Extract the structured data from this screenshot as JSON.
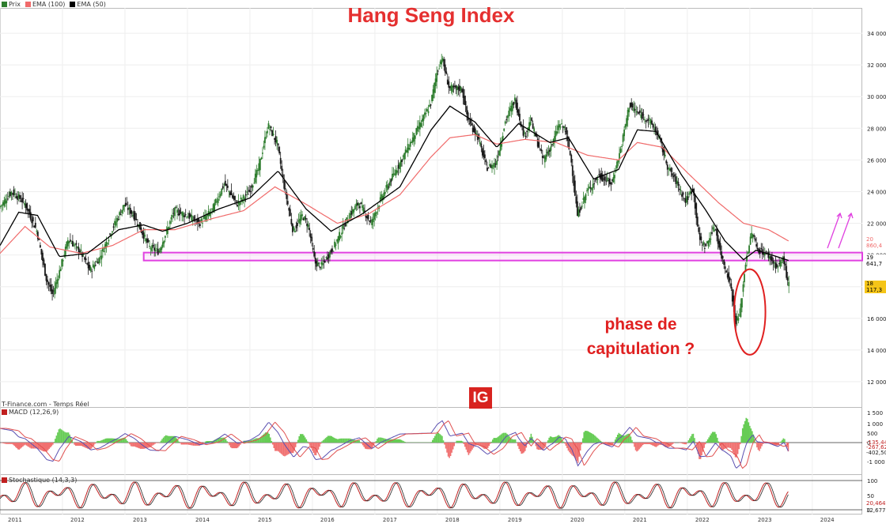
{
  "header": {
    "legend": [
      {
        "label": "Prix",
        "color": "#2e7d2e"
      },
      {
        "label": "EMA (100)",
        "color": "#f06a6a"
      },
      {
        "label": "EMA (50)",
        "color": "#000000"
      }
    ],
    "title": "Hang Seng Index"
  },
  "annotation": {
    "line1": "phase de",
    "line2": "capitulation ?"
  },
  "source_label": "T-Finance.com - Temps Réel",
  "logo_text": "IG",
  "macd": {
    "label": "MACD (12,26,9)",
    "ticks": [
      "1 500",
      "1 000",
      "500",
      "0",
      "-1 000"
    ],
    "tags": [
      "-135,44",
      "-267,62",
      "-402,50"
    ]
  },
  "stoch": {
    "label": "Stochastique (14,3,3)",
    "ticks": [
      "100",
      "50",
      "0"
    ],
    "tags": [
      "20,464",
      "12,677"
    ]
  },
  "price_tags": {
    "ema100": "20 860,4",
    "ema50": "19 641,7",
    "last": "18 117,3"
  },
  "colors": {
    "up": "#2e7d2e",
    "down": "#1a1a1a",
    "ema100": "#f06a6a",
    "ema50": "#000000",
    "zone": "#e040e0",
    "circle": "#e02020",
    "arrows": "#e040e0",
    "macd_pos": "#66cc55",
    "macd_neg": "#f07070",
    "stoch_k": "#c02020",
    "stoch_d": "#222222"
  },
  "chart_data": {
    "type": "candlestick",
    "title": "Hang Seng Index",
    "y_ticks": [
      12000,
      14000,
      16000,
      18000,
      20000,
      22000,
      24000,
      26000,
      28000,
      30000,
      32000,
      34000
    ],
    "y_tick_labels": [
      "12 000",
      "14 000",
      "16 000",
      "18 000",
      "20 000",
      "22 000",
      "24 000",
      "26 000",
      "28 000",
      "30 000",
      "32 000",
      "34 000"
    ],
    "ylim": [
      10400,
      35600
    ],
    "x_labels": [
      "2011",
      "2012",
      "2013",
      "2014",
      "2015",
      "2016",
      "2017",
      "2018",
      "2019",
      "2020",
      "2021",
      "2022",
      "2023",
      "2024"
    ],
    "xlim": [
      2011.0,
      2024.8
    ],
    "price_anchors": [
      [
        2011.0,
        23000
      ],
      [
        2011.2,
        24000
      ],
      [
        2011.4,
        23300
      ],
      [
        2011.6,
        21500
      ],
      [
        2011.75,
        18500
      ],
      [
        2011.85,
        17500
      ],
      [
        2011.95,
        18800
      ],
      [
        2012.1,
        21000
      ],
      [
        2012.3,
        20200
      ],
      [
        2012.45,
        19000
      ],
      [
        2012.6,
        19800
      ],
      [
        2012.8,
        21600
      ],
      [
        2013.0,
        23200
      ],
      [
        2013.15,
        22500
      ],
      [
        2013.4,
        20500
      ],
      [
        2013.55,
        20200
      ],
      [
        2013.8,
        22800
      ],
      [
        2014.0,
        22500
      ],
      [
        2014.2,
        22000
      ],
      [
        2014.4,
        22800
      ],
      [
        2014.6,
        24500
      ],
      [
        2014.8,
        23200
      ],
      [
        2015.0,
        24000
      ],
      [
        2015.15,
        25500
      ],
      [
        2015.3,
        28200
      ],
      [
        2015.45,
        27000
      ],
      [
        2015.55,
        24500
      ],
      [
        2015.7,
        21500
      ],
      [
        2015.85,
        22500
      ],
      [
        2015.95,
        21800
      ],
      [
        2016.05,
        19500
      ],
      [
        2016.15,
        19300
      ],
      [
        2016.35,
        20500
      ],
      [
        2016.6,
        22500
      ],
      [
        2016.75,
        23300
      ],
      [
        2016.95,
        22000
      ],
      [
        2017.1,
        23500
      ],
      [
        2017.3,
        25000
      ],
      [
        2017.5,
        26500
      ],
      [
        2017.7,
        28000
      ],
      [
        2017.9,
        29500
      ],
      [
        2018.0,
        31500
      ],
      [
        2018.08,
        32500
      ],
      [
        2018.2,
        30500
      ],
      [
        2018.4,
        30500
      ],
      [
        2018.5,
        28500
      ],
      [
        2018.65,
        27500
      ],
      [
        2018.8,
        25500
      ],
      [
        2018.95,
        25800
      ],
      [
        2019.1,
        28500
      ],
      [
        2019.25,
        29800
      ],
      [
        2019.4,
        27500
      ],
      [
        2019.5,
        28500
      ],
      [
        2019.7,
        26000
      ],
      [
        2019.85,
        27000
      ],
      [
        2019.95,
        28200
      ],
      [
        2020.05,
        28000
      ],
      [
        2020.15,
        26000
      ],
      [
        2020.25,
        22500
      ],
      [
        2020.4,
        24000
      ],
      [
        2020.6,
        25000
      ],
      [
        2020.8,
        24500
      ],
      [
        2020.95,
        26800
      ],
      [
        2021.08,
        29500
      ],
      [
        2021.2,
        29000
      ],
      [
        2021.4,
        28500
      ],
      [
        2021.55,
        27500
      ],
      [
        2021.7,
        25500
      ],
      [
        2021.85,
        24500
      ],
      [
        2021.98,
        23400
      ],
      [
        2022.1,
        24200
      ],
      [
        2022.2,
        21000
      ],
      [
        2022.3,
        20500
      ],
      [
        2022.45,
        21800
      ],
      [
        2022.55,
        20000
      ],
      [
        2022.7,
        18200
      ],
      [
        2022.78,
        15800
      ],
      [
        2022.85,
        16200
      ],
      [
        2022.95,
        19800
      ],
      [
        2023.05,
        21500
      ],
      [
        2023.12,
        20400
      ],
      [
        2023.3,
        20000
      ],
      [
        2023.45,
        19200
      ],
      [
        2023.55,
        19800
      ],
      [
        2023.62,
        18117
      ]
    ],
    "ema100_anchors": [
      [
        2011.0,
        20100
      ],
      [
        2011.4,
        21800
      ],
      [
        2011.8,
        20500
      ],
      [
        2012.3,
        20100
      ],
      [
        2012.8,
        20600
      ],
      [
        2013.3,
        21600
      ],
      [
        2013.8,
        21600
      ],
      [
        2014.4,
        22300
      ],
      [
        2014.9,
        22800
      ],
      [
        2015.4,
        24300
      ],
      [
        2015.9,
        23200
      ],
      [
        2016.4,
        22000
      ],
      [
        2016.9,
        22600
      ],
      [
        2017.4,
        23800
      ],
      [
        2017.9,
        26200
      ],
      [
        2018.2,
        27400
      ],
      [
        2018.6,
        27600
      ],
      [
        2018.95,
        27000
      ],
      [
        2019.4,
        27300
      ],
      [
        2019.9,
        27100
      ],
      [
        2020.4,
        26300
      ],
      [
        2020.9,
        26000
      ],
      [
        2021.2,
        27100
      ],
      [
        2021.6,
        26800
      ],
      [
        2022.0,
        25200
      ],
      [
        2022.5,
        23300
      ],
      [
        2022.9,
        22000
      ],
      [
        2023.3,
        21600
      ],
      [
        2023.63,
        20860
      ]
    ],
    "ema50_anchors": [
      [
        2011.0,
        20600
      ],
      [
        2011.3,
        22700
      ],
      [
        2011.6,
        22500
      ],
      [
        2011.95,
        19900
      ],
      [
        2012.4,
        20100
      ],
      [
        2012.9,
        21600
      ],
      [
        2013.3,
        21900
      ],
      [
        2013.6,
        21500
      ],
      [
        2014.0,
        22000
      ],
      [
        2014.5,
        22900
      ],
      [
        2015.0,
        23600
      ],
      [
        2015.45,
        25300
      ],
      [
        2015.9,
        22900
      ],
      [
        2016.3,
        21500
      ],
      [
        2016.8,
        22600
      ],
      [
        2017.4,
        24300
      ],
      [
        2017.9,
        27900
      ],
      [
        2018.2,
        29400
      ],
      [
        2018.6,
        28400
      ],
      [
        2018.95,
        26800
      ],
      [
        2019.3,
        28300
      ],
      [
        2019.8,
        27100
      ],
      [
        2020.1,
        27400
      ],
      [
        2020.5,
        24800
      ],
      [
        2020.9,
        25400
      ],
      [
        2021.2,
        27900
      ],
      [
        2021.5,
        27800
      ],
      [
        2021.9,
        25100
      ],
      [
        2022.3,
        22800
      ],
      [
        2022.6,
        20900
      ],
      [
        2022.9,
        19700
      ],
      [
        2023.1,
        20300
      ],
      [
        2023.35,
        20000
      ],
      [
        2023.63,
        19641
      ]
    ],
    "support_zone": {
      "low": 19650,
      "high": 20150,
      "x_start": 2013.3,
      "x_end": 2024.8
    },
    "capitulation_circle": {
      "x": 2023.0,
      "y": 16400,
      "rx": 0.25,
      "ry": 2700
    },
    "last_price": 18117.3
  }
}
